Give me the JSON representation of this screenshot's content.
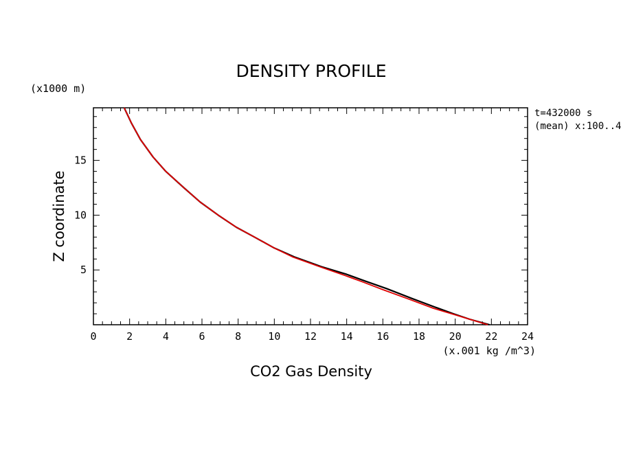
{
  "chart_data": {
    "type": "line",
    "title": "DENSITY PROFILE",
    "xlabel": "CO2 Gas Density",
    "xunit": "(x.001 kg /m^3)",
    "ylabel": "Z coordinate",
    "yunit": "(x1000 m)",
    "annotations": [
      "t=432000 s",
      "(mean) x:100..4"
    ],
    "xlim": [
      0,
      24
    ],
    "ylim": [
      0,
      19.8
    ],
    "xticks": [
      0,
      2,
      4,
      6,
      8,
      10,
      12,
      14,
      16,
      18,
      20,
      22,
      24
    ],
    "yticks": [
      5,
      10,
      15
    ],
    "grid": false,
    "series": [
      {
        "color": "#000000",
        "x": [
          21.9,
          20.8,
          19.9,
          18.9,
          17.6,
          16.2,
          15.0,
          14.0,
          12.6,
          11.1,
          10.0,
          8.9,
          7.9,
          6.9,
          5.9,
          5.0,
          4.0,
          3.3,
          2.6,
          2.1,
          1.7
        ],
        "y": [
          0,
          0.5,
          1.0,
          1.6,
          2.4,
          3.3,
          4.0,
          4.6,
          5.3,
          6.2,
          7.0,
          8.0,
          8.9,
          10.0,
          11.2,
          12.5,
          14.0,
          15.3,
          16.9,
          18.4,
          19.8
        ]
      },
      {
        "color": "#e00000",
        "x": [
          21.8,
          20.8,
          19.8,
          18.8,
          17.5,
          16.0,
          14.9,
          13.9,
          12.5,
          11.0,
          10.0,
          8.9,
          7.9,
          6.9,
          5.9,
          5.0,
          4.0,
          3.3,
          2.6,
          2.1,
          1.7
        ],
        "y": [
          0,
          0.5,
          1.0,
          1.5,
          2.3,
          3.2,
          3.9,
          4.5,
          5.3,
          6.2,
          7.0,
          8.0,
          8.9,
          10.0,
          11.2,
          12.5,
          14.0,
          15.3,
          16.9,
          18.4,
          19.8
        ]
      }
    ]
  }
}
